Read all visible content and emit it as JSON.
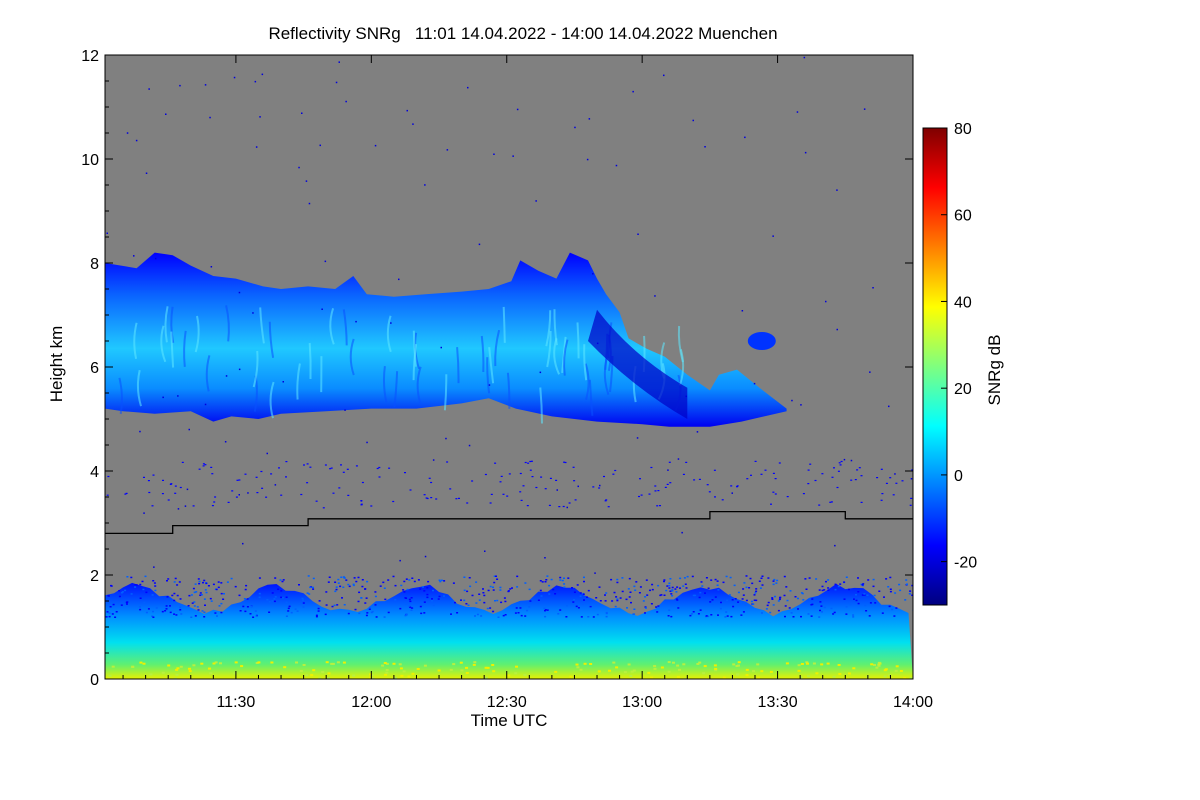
{
  "chart_data": {
    "type": "heatmap",
    "title": "Reflectivity SNRg   11:01 14.04.2022 - 14:00 14.04.2022 Muenchen",
    "xlabel": "Time UTC",
    "ylabel": "Height km",
    "x_range_minutes_utc": [
      661,
      840
    ],
    "x_ticks": [
      {
        "label": "11:30",
        "value": 690
      },
      {
        "label": "12:00",
        "value": 720
      },
      {
        "label": "12:30",
        "value": 750
      },
      {
        "label": "13:00",
        "value": 780
      },
      {
        "label": "13:30",
        "value": 810
      },
      {
        "label": "14:00",
        "value": 840
      }
    ],
    "ylim": [
      0,
      12
    ],
    "y_ticks": [
      {
        "label": "0",
        "value": 0
      },
      {
        "label": "2",
        "value": 2
      },
      {
        "label": "4",
        "value": 4
      },
      {
        "label": "6",
        "value": 6
      },
      {
        "label": "8",
        "value": 8
      },
      {
        "label": "10",
        "value": 10
      },
      {
        "label": "12",
        "value": 12
      }
    ],
    "colorbar": {
      "label": "SNRg dB",
      "range": [
        -30,
        80
      ],
      "ticks": [
        {
          "label": "-20",
          "value": -20
        },
        {
          "label": "0",
          "value": 0
        },
        {
          "label": "20",
          "value": 20
        },
        {
          "label": "40",
          "value": 40
        },
        {
          "label": "60",
          "value": 60
        },
        {
          "label": "80",
          "value": 80
        }
      ]
    },
    "colors": {
      "background": "#808080",
      "line": "#000000",
      "colormap": [
        "#00007f",
        "#0000ff",
        "#007fff",
        "#00ffff",
        "#7fff7f",
        "#ffff00",
        "#ff7f00",
        "#ff0000",
        "#7f0000"
      ]
    },
    "cloud_layer": {
      "description_units": "time in minutes UTC, height in km",
      "top": [
        [
          661,
          8.0
        ],
        [
          668,
          7.9
        ],
        [
          672,
          8.2
        ],
        [
          676,
          8.15
        ],
        [
          680,
          7.95
        ],
        [
          685,
          7.75
        ],
        [
          690,
          7.7
        ],
        [
          696,
          7.55
        ],
        [
          700,
          7.5
        ],
        [
          706,
          7.55
        ],
        [
          712,
          7.5
        ],
        [
          716,
          7.75
        ],
        [
          719,
          7.4
        ],
        [
          725,
          7.35
        ],
        [
          732,
          7.4
        ],
        [
          740,
          7.45
        ],
        [
          746,
          7.5
        ],
        [
          751,
          7.65
        ],
        [
          753,
          8.05
        ],
        [
          757,
          7.85
        ],
        [
          761,
          7.7
        ],
        [
          764,
          8.2
        ],
        [
          768,
          8.05
        ],
        [
          770,
          7.7
        ],
        [
          772,
          7.4
        ],
        [
          775,
          7.05
        ],
        [
          777,
          6.55
        ],
        [
          781,
          6.35
        ],
        [
          785,
          6.2
        ],
        [
          790,
          5.85
        ],
        [
          795,
          5.55
        ],
        [
          797,
          5.85
        ],
        [
          801,
          5.95
        ],
        [
          806,
          5.6
        ],
        [
          812,
          5.2
        ]
      ],
      "base": [
        [
          661,
          5.2
        ],
        [
          665,
          5.15
        ],
        [
          672,
          5.1
        ],
        [
          680,
          5.15
        ],
        [
          685,
          4.95
        ],
        [
          689,
          5.05
        ],
        [
          695,
          5.0
        ],
        [
          700,
          5.1
        ],
        [
          710,
          5.15
        ],
        [
          720,
          5.2
        ],
        [
          730,
          5.2
        ],
        [
          740,
          5.3
        ],
        [
          746,
          5.4
        ],
        [
          752,
          5.2
        ],
        [
          760,
          5.05
        ],
        [
          770,
          4.95
        ],
        [
          780,
          4.9
        ],
        [
          786,
          4.85
        ],
        [
          795,
          4.85
        ],
        [
          802,
          4.95
        ],
        [
          812,
          5.15
        ]
      ],
      "snr_core_db": [
        -10,
        15
      ]
    },
    "detached_patches": [
      {
        "time_center": 806.5,
        "height_km": 6.5,
        "snr_db": -12
      }
    ],
    "boundary_layer": {
      "top_km": 1.9,
      "snr_db_near_ground": [
        20,
        40
      ],
      "snr_db_upper": [
        -20,
        -5
      ]
    },
    "black_line_steps": [
      {
        "from": 661,
        "to": 676,
        "height_km": 2.8
      },
      {
        "from": 676,
        "to": 706,
        "height_km": 2.95
      },
      {
        "from": 706,
        "to": 795,
        "height_km": 3.08
      },
      {
        "from": 795,
        "to": 825,
        "height_km": 3.22
      },
      {
        "from": 825,
        "to": 840,
        "height_km": 3.08
      }
    ]
  }
}
